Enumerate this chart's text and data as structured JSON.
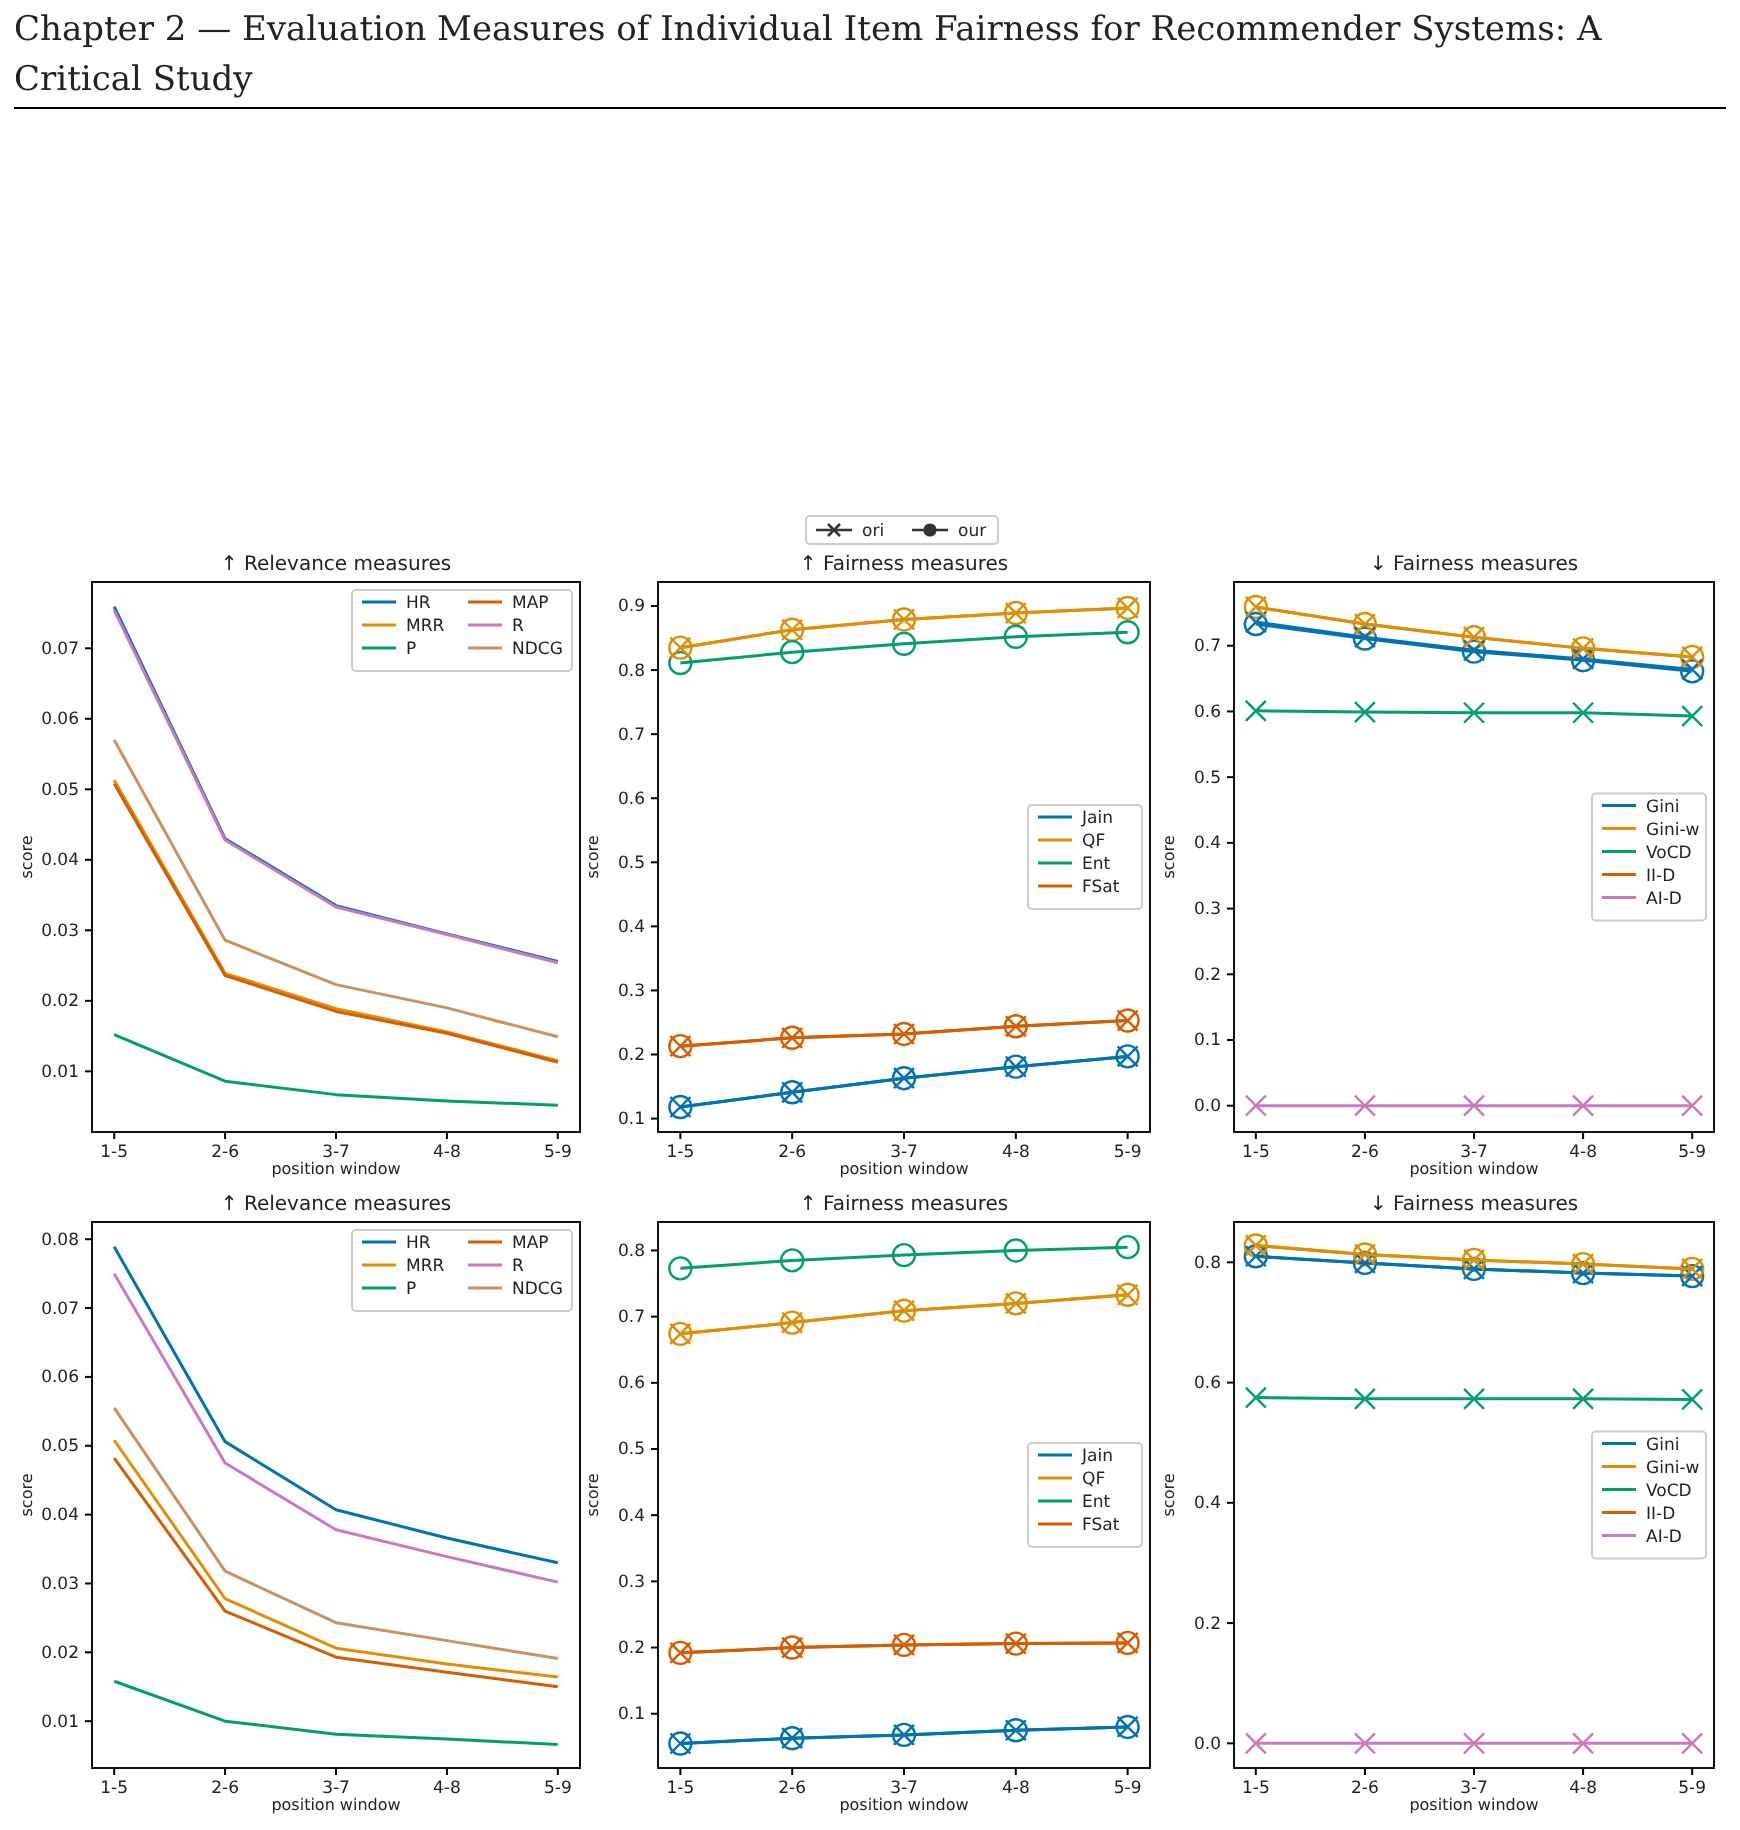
{
  "chart_data": [
    {
      "type": "line",
      "title": "↑ Relevance measures",
      "xlabel": "position window",
      "ylabel": "score",
      "annotations": [
        "Chapter 2 — Evaluation Measures of Individual Item Fairness for Recommender Systems: A Critical Study"
      ],
      "categories": [
        "1-5",
        "2-6",
        "3-7",
        "4-8",
        "5-9"
      ],
      "ylim": [
        0.0014,
        0.0794
      ],
      "yticks": [
        0.01,
        0.02,
        0.03,
        0.04,
        0.05,
        0.06,
        0.07
      ],
      "legend": "top right",
      "grid": false,
      "marker": "none",
      "series": [
        {
          "name": "HR",
          "color": "#0173b2",
          "values": [
            0.0759,
            0.043,
            0.0335,
            0.0295,
            0.0256
          ]
        },
        {
          "name": "MRR",
          "color": "#de8f05",
          "values": [
            0.0513,
            0.0239,
            0.0189,
            0.0156,
            0.0115
          ]
        },
        {
          "name": "P",
          "color": "#029e73",
          "values": [
            0.0152,
            0.0086,
            0.0067,
            0.0058,
            0.0052
          ]
        },
        {
          "name": "MAP",
          "color": "#d55e00",
          "values": [
            0.0508,
            0.0236,
            0.0185,
            0.0154,
            0.0113
          ]
        },
        {
          "name": "R",
          "color": "#cc78bc",
          "values": [
            0.0754,
            0.0428,
            0.0333,
            0.0294,
            0.0254
          ]
        },
        {
          "name": "NDCG",
          "color": "#ca9161",
          "values": [
            0.057,
            0.0286,
            0.0223,
            0.019,
            0.0149
          ]
        }
      ]
    },
    {
      "type": "line",
      "title": "↑ Fairness measures",
      "xlabel": "position window",
      "ylabel": "score",
      "annotations": [
        "ori",
        "our"
      ],
      "categories": [
        "1-5",
        "2-6",
        "3-7",
        "4-8",
        "5-9"
      ],
      "ylim": [
        0.079,
        0.9375
      ],
      "yticks": [
        0.1,
        0.2,
        0.3,
        0.4,
        0.5,
        0.6,
        0.7,
        0.8,
        0.9
      ],
      "legend": "right",
      "grid": false,
      "series": [
        {
          "name": "Jain",
          "color": "#0173b2",
          "marker": "circle",
          "values": [
            0.118,
            0.141,
            0.163,
            0.181,
            0.197
          ]
        },
        {
          "name": "QF",
          "color": "#de8f05",
          "marker": "circle",
          "values": [
            0.835,
            0.863,
            0.879,
            0.889,
            0.897
          ]
        },
        {
          "name": "Ent",
          "color": "#029e73",
          "marker": "circle",
          "values": [
            0.811,
            0.828,
            0.841,
            0.852,
            0.859
          ]
        },
        {
          "name": "FSat",
          "color": "#d55e00",
          "marker": "circle",
          "values": [
            0.213,
            0.226,
            0.232,
            0.244,
            0.253
          ]
        },
        {
          "color": "#0173b2",
          "marker": "cross",
          "values": [
            0.118,
            0.141,
            0.163,
            0.181,
            0.197
          ]
        },
        {
          "color": "#de8f05",
          "marker": "cross",
          "values": [
            0.835,
            0.863,
            0.879,
            0.889,
            0.897
          ]
        },
        {
          "color": "#d55e00",
          "marker": "cross",
          "values": [
            0.213,
            0.226,
            0.232,
            0.244,
            0.253
          ]
        }
      ]
    },
    {
      "type": "line",
      "title": "↓ Fairness measures",
      "xlabel": "position window",
      "ylabel": "score",
      "categories": [
        "1-5",
        "2-6",
        "3-7",
        "4-8",
        "5-9"
      ],
      "ylim": [
        -0.04,
        0.797
      ],
      "yticks": [
        {
          "value": 0,
          "label": "0.0"
        },
        {
          "value": 0.1,
          "label": "0.1"
        },
        {
          "value": 0.2,
          "label": "0.2"
        },
        {
          "value": 0.3,
          "label": "0.3"
        },
        {
          "value": 0.4,
          "label": "0.4"
        },
        {
          "value": 0.5,
          "label": "0.5"
        },
        {
          "value": 0.6,
          "label": "0.6"
        },
        {
          "value": 0.7,
          "label": "0.7"
        }
      ],
      "legend": "right",
      "grid": false,
      "series": [
        {
          "name": "Gini",
          "color": "#0173b2",
          "marker": "circle",
          "values": [
            0.733,
            0.711,
            0.691,
            0.678,
            0.661
          ]
        },
        {
          "name": "Gini-w",
          "color": "#de8f05",
          "marker": "circle",
          "values": [
            0.759,
            0.733,
            0.713,
            0.696,
            0.683
          ]
        },
        {
          "name": "VoCD",
          "color": "#029e73",
          "marker": "cross",
          "values": [
            0.601,
            0.599,
            0.598,
            0.598,
            0.593
          ]
        },
        {
          "name": "II-D",
          "color": "#d55e00",
          "marker": "cross",
          "values": [
            null,
            null,
            null,
            null,
            null
          ]
        },
        {
          "name": "AI-D",
          "color": "#cc78bc",
          "marker": "cross",
          "values": [
            0,
            0,
            0,
            0,
            0
          ]
        },
        {
          "color": "#0173b2",
          "marker": "cross",
          "values": [
            0.736,
            0.713,
            0.693,
            0.68,
            0.664
          ]
        },
        {
          "color": "#de8f05",
          "marker": "cross",
          "values": [
            0.759,
            0.733,
            0.713,
            0.696,
            0.683
          ]
        }
      ]
    },
    {
      "type": "line",
      "title": "↑ Relevance measures",
      "xlabel": "position window",
      "ylabel": "score",
      "categories": [
        "1-5",
        "2-6",
        "3-7",
        "4-8",
        "5-9"
      ],
      "ylim": [
        0.0032,
        0.0825
      ],
      "yticks": [
        0.01,
        0.02,
        0.03,
        0.04,
        0.05,
        0.06,
        0.07,
        0.08
      ],
      "legend": "top right",
      "grid": false,
      "marker": "none",
      "series": [
        {
          "name": "HR",
          "color": "#0173b2",
          "values": [
            0.0789,
            0.0506,
            0.0407,
            0.0366,
            0.033
          ]
        },
        {
          "name": "MRR",
          "color": "#de8f05",
          "values": [
            0.0508,
            0.0278,
            0.0206,
            0.0183,
            0.0164
          ]
        },
        {
          "name": "P",
          "color": "#029e73",
          "values": [
            0.0158,
            0.01,
            0.0081,
            0.0074,
            0.0066
          ]
        },
        {
          "name": "MAP",
          "color": "#d55e00",
          "values": [
            0.0482,
            0.026,
            0.0193,
            0.0171,
            0.015
          ]
        },
        {
          "name": "R",
          "color": "#cc78bc",
          "values": [
            0.075,
            0.0475,
            0.0378,
            0.0339,
            0.0302
          ]
        },
        {
          "name": "NDCG",
          "color": "#ca9161",
          "values": [
            0.0555,
            0.0318,
            0.0243,
            0.0217,
            0.0191
          ]
        }
      ]
    },
    {
      "type": "line",
      "title": "↑ Fairness measures",
      "xlabel": "position window",
      "ylabel": "score",
      "categories": [
        "1-5",
        "2-6",
        "3-7",
        "4-8",
        "5-9"
      ],
      "ylim": [
        0.018,
        0.843
      ],
      "yticks": [
        0.1,
        0.2,
        0.3,
        0.4,
        0.5,
        0.6,
        0.7,
        0.8
      ],
      "legend": "right",
      "grid": false,
      "series": [
        {
          "name": "Jain",
          "color": "#0173b2",
          "marker": "circle",
          "values": [
            0.055,
            0.063,
            0.068,
            0.075,
            0.08
          ]
        },
        {
          "name": "QF",
          "color": "#de8f05",
          "marker": "circle",
          "values": [
            0.674,
            0.691,
            0.709,
            0.72,
            0.733
          ]
        },
        {
          "name": "Ent",
          "color": "#029e73",
          "marker": "circle",
          "values": [
            0.773,
            0.785,
            0.793,
            0.8,
            0.805
          ]
        },
        {
          "name": "FSat",
          "color": "#d55e00",
          "marker": "circle",
          "values": [
            0.192,
            0.2,
            0.204,
            0.206,
            0.207
          ]
        },
        {
          "color": "#0173b2",
          "marker": "cross",
          "values": [
            0.055,
            0.063,
            0.068,
            0.075,
            0.08
          ]
        },
        {
          "color": "#de8f05",
          "marker": "cross",
          "values": [
            0.674,
            0.691,
            0.709,
            0.72,
            0.733
          ]
        },
        {
          "color": "#d55e00",
          "marker": "cross",
          "values": [
            0.192,
            0.2,
            0.204,
            0.206,
            0.207
          ]
        }
      ]
    },
    {
      "type": "line",
      "title": "↓ Fairness measures",
      "xlabel": "position window",
      "ylabel": "score",
      "categories": [
        "1-5",
        "2-6",
        "3-7",
        "4-8",
        "5-9"
      ],
      "ylim": [
        -0.041,
        0.867
      ],
      "yticks": [
        {
          "value": 0,
          "label": "0.0"
        },
        {
          "value": 0.2,
          "label": "0.2"
        },
        {
          "value": 0.4,
          "label": "0.4"
        },
        {
          "value": 0.6,
          "label": "0.6"
        },
        {
          "value": 0.8,
          "label": "0.8"
        }
      ],
      "legend": "right",
      "grid": false,
      "series": [
        {
          "name": "Gini",
          "color": "#0173b2",
          "marker": "circle",
          "values": [
            0.81,
            0.799,
            0.789,
            0.782,
            0.777
          ]
        },
        {
          "name": "Gini-w",
          "color": "#de8f05",
          "marker": "circle",
          "values": [
            0.828,
            0.813,
            0.804,
            0.797,
            0.789
          ]
        },
        {
          "name": "VoCD",
          "color": "#029e73",
          "marker": "cross",
          "values": [
            0.575,
            0.573,
            0.573,
            0.573,
            0.572
          ]
        },
        {
          "name": "II-D",
          "color": "#d55e00",
          "marker": "cross",
          "values": [
            null,
            null,
            null,
            null,
            null
          ]
        },
        {
          "name": "AI-D",
          "color": "#cc78bc",
          "marker": "cross",
          "values": [
            0,
            0,
            0,
            0,
            0
          ]
        },
        {
          "color": "#0173b2",
          "marker": "cross",
          "values": [
            0.81,
            0.799,
            0.789,
            0.782,
            0.777
          ]
        },
        {
          "color": "#de8f05",
          "marker": "cross",
          "values": [
            0.828,
            0.813,
            0.804,
            0.797,
            0.789
          ]
        }
      ]
    }
  ]
}
